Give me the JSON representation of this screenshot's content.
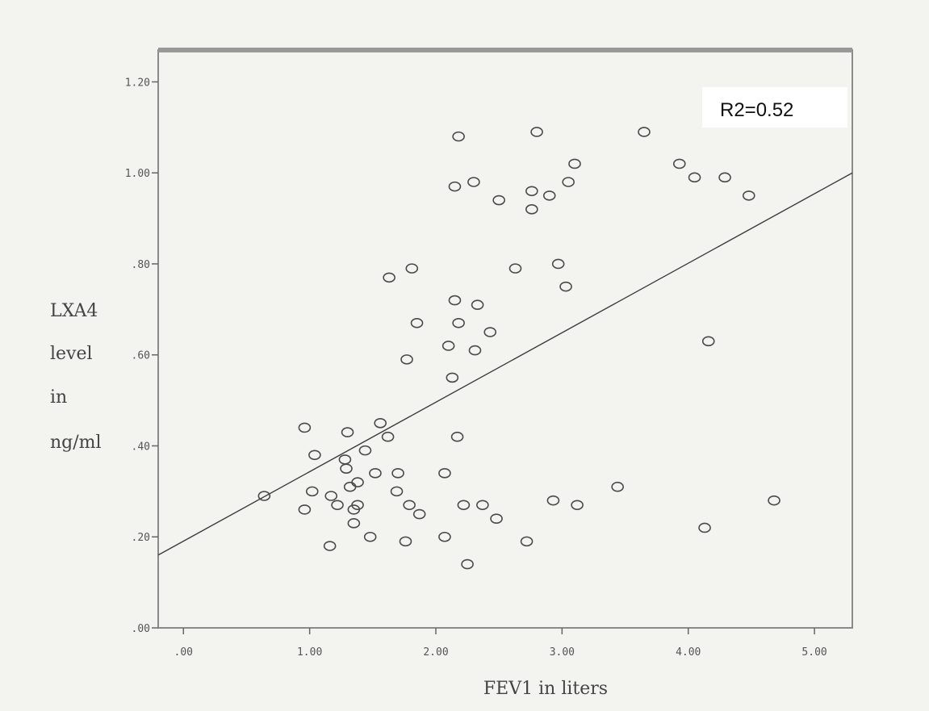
{
  "chart_data": {
    "type": "scatter",
    "xlabel": "FEV1 in liters",
    "ylabel_lines": [
      "LXA4",
      "level",
      "in",
      "ng/ml"
    ],
    "annotation": "R2=0.52",
    "xlim": [
      -0.2,
      5.3
    ],
    "ylim": [
      0.0,
      1.27
    ],
    "x_ticks": [
      0,
      1,
      2,
      3,
      4,
      5
    ],
    "x_tick_labels": [
      ".00",
      "1.00",
      "2.00",
      "3.00",
      "4.00",
      "5.00"
    ],
    "y_ticks": [
      0.0,
      0.2,
      0.4,
      0.6,
      0.8,
      1.0,
      1.2
    ],
    "y_tick_labels": [
      ".00",
      ".20",
      ".40",
      ".60",
      ".80",
      "1.00",
      "1.20"
    ],
    "fit_line": {
      "x": [
        -0.2,
        5.3
      ],
      "y": [
        0.16,
        1.0
      ]
    },
    "points": [
      {
        "x": 2.18,
        "y": 1.08
      },
      {
        "x": 2.8,
        "y": 1.09
      },
      {
        "x": 3.65,
        "y": 1.09
      },
      {
        "x": 2.15,
        "y": 0.97
      },
      {
        "x": 2.3,
        "y": 0.98
      },
      {
        "x": 2.5,
        "y": 0.94
      },
      {
        "x": 2.76,
        "y": 0.96
      },
      {
        "x": 2.9,
        "y": 0.95
      },
      {
        "x": 3.05,
        "y": 0.98
      },
      {
        "x": 3.1,
        "y": 1.02
      },
      {
        "x": 2.76,
        "y": 0.92
      },
      {
        "x": 3.93,
        "y": 1.02
      },
      {
        "x": 4.05,
        "y": 0.99
      },
      {
        "x": 4.29,
        "y": 0.99
      },
      {
        "x": 4.48,
        "y": 0.95
      },
      {
        "x": 1.63,
        "y": 0.77
      },
      {
        "x": 1.81,
        "y": 0.79
      },
      {
        "x": 2.63,
        "y": 0.79
      },
      {
        "x": 2.97,
        "y": 0.8
      },
      {
        "x": 3.03,
        "y": 0.75
      },
      {
        "x": 2.15,
        "y": 0.72
      },
      {
        "x": 2.33,
        "y": 0.71
      },
      {
        "x": 1.85,
        "y": 0.67
      },
      {
        "x": 2.18,
        "y": 0.67
      },
      {
        "x": 2.43,
        "y": 0.65
      },
      {
        "x": 2.1,
        "y": 0.62
      },
      {
        "x": 2.31,
        "y": 0.61
      },
      {
        "x": 1.77,
        "y": 0.59
      },
      {
        "x": 2.13,
        "y": 0.55
      },
      {
        "x": 4.16,
        "y": 0.63
      },
      {
        "x": 0.96,
        "y": 0.44
      },
      {
        "x": 1.3,
        "y": 0.43
      },
      {
        "x": 1.56,
        "y": 0.45
      },
      {
        "x": 1.62,
        "y": 0.42
      },
      {
        "x": 2.17,
        "y": 0.42
      },
      {
        "x": 1.04,
        "y": 0.38
      },
      {
        "x": 1.44,
        "y": 0.39
      },
      {
        "x": 1.28,
        "y": 0.37
      },
      {
        "x": 1.29,
        "y": 0.35
      },
      {
        "x": 1.52,
        "y": 0.34
      },
      {
        "x": 1.7,
        "y": 0.34
      },
      {
        "x": 2.07,
        "y": 0.34
      },
      {
        "x": 1.38,
        "y": 0.32
      },
      {
        "x": 1.32,
        "y": 0.31
      },
      {
        "x": 1.69,
        "y": 0.3
      },
      {
        "x": 1.02,
        "y": 0.3
      },
      {
        "x": 1.17,
        "y": 0.29
      },
      {
        "x": 0.64,
        "y": 0.29
      },
      {
        "x": 0.96,
        "y": 0.26
      },
      {
        "x": 1.22,
        "y": 0.27
      },
      {
        "x": 1.38,
        "y": 0.27
      },
      {
        "x": 1.35,
        "y": 0.26
      },
      {
        "x": 1.79,
        "y": 0.27
      },
      {
        "x": 1.87,
        "y": 0.25
      },
      {
        "x": 2.22,
        "y": 0.27
      },
      {
        "x": 2.37,
        "y": 0.27
      },
      {
        "x": 2.48,
        "y": 0.24
      },
      {
        "x": 2.93,
        "y": 0.28
      },
      {
        "x": 3.12,
        "y": 0.27
      },
      {
        "x": 3.44,
        "y": 0.31
      },
      {
        "x": 4.68,
        "y": 0.28
      },
      {
        "x": 1.35,
        "y": 0.23
      },
      {
        "x": 1.48,
        "y": 0.2
      },
      {
        "x": 1.76,
        "y": 0.19
      },
      {
        "x": 2.07,
        "y": 0.2
      },
      {
        "x": 2.72,
        "y": 0.19
      },
      {
        "x": 1.16,
        "y": 0.18
      },
      {
        "x": 2.25,
        "y": 0.14
      },
      {
        "x": 4.13,
        "y": 0.22
      }
    ]
  }
}
